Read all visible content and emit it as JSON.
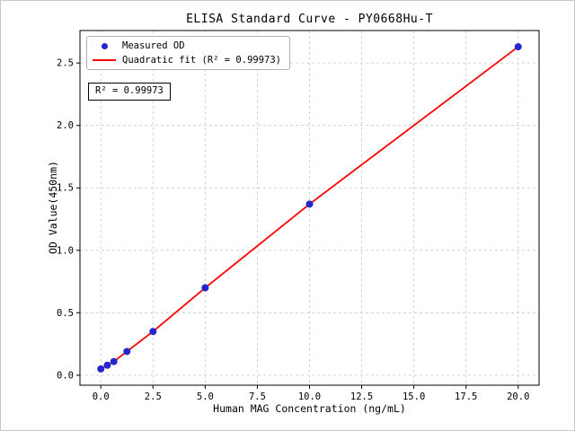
{
  "figure": {
    "title": "ELISA Standard Curve - PY0668Hu-T",
    "xlabel": "Human MAG Concentration (ng/mL)",
    "ylabel": "OD Value(450nm)",
    "annotation": "R² = 0.99973"
  },
  "legend": {
    "position": "upper left",
    "items": [
      {
        "label": "Measured OD",
        "type": "marker",
        "color": "#2525cd"
      },
      {
        "label": "Quadratic fit (R² = 0.99973)",
        "type": "line",
        "color": "#ff0000"
      }
    ]
  },
  "chart_data": {
    "type": "scatter",
    "title": "ELISA Standard Curve - PY0668Hu-T",
    "xlabel": "Human MAG Concentration (ng/mL)",
    "ylabel": "OD Value(450nm)",
    "xlim": [
      -1,
      21
    ],
    "ylim": [
      -0.08,
      2.76
    ],
    "xticks": [
      0.0,
      2.5,
      5.0,
      7.5,
      10.0,
      12.5,
      15.0,
      17.5,
      20.0
    ],
    "yticks": [
      0.0,
      0.5,
      1.0,
      1.5,
      2.0,
      2.5
    ],
    "grid": true,
    "grid_style": "dashed",
    "legend_position": "upper left",
    "annotation": "R² = 0.99973",
    "r_squared": 0.99973,
    "series": [
      {
        "name": "Measured OD",
        "type": "scatter",
        "color": "#2525cd",
        "x": [
          0,
          0.312,
          0.625,
          1.25,
          2.5,
          5,
          10,
          20
        ],
        "y": [
          0.05,
          0.08,
          0.11,
          0.19,
          0.35,
          0.7,
          1.37,
          2.63
        ]
      },
      {
        "name": "Quadratic fit (R² = 0.99973)",
        "type": "line",
        "color": "#ff0000"
      }
    ]
  }
}
